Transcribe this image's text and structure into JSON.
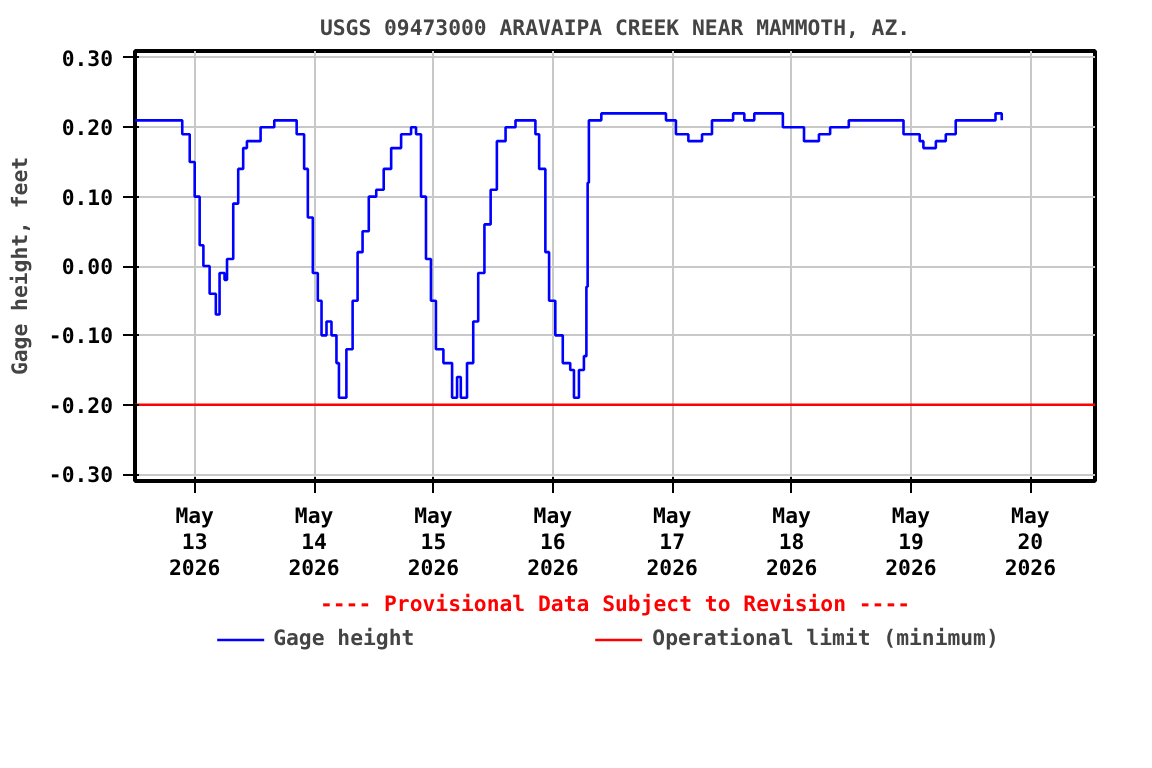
{
  "chart_data": {
    "type": "step",
    "title": "USGS 09473000 ARAVAIPA CREEK NEAR MAMMOTH, AZ.",
    "ylabel": "Gage height, feet",
    "annotations": [
      "---- Provisional Data Subject to Revision ----"
    ],
    "xlim": [
      "2026-05-12T12:00",
      "2026-05-20T13:00"
    ],
    "xticks": [
      {
        "value": "2026-05-13",
        "label": "May\n13\n2026"
      },
      {
        "value": "2026-05-14",
        "label": "May\n14\n2026"
      },
      {
        "value": "2026-05-15",
        "label": "May\n15\n2026"
      },
      {
        "value": "2026-05-16",
        "label": "May\n16\n2026"
      },
      {
        "value": "2026-05-17",
        "label": "May\n17\n2026"
      },
      {
        "value": "2026-05-18",
        "label": "May\n18\n2026"
      },
      {
        "value": "2026-05-19",
        "label": "May\n19\n2026"
      },
      {
        "value": "2026-05-20",
        "label": "May\n20\n2026"
      }
    ],
    "ylim": [
      -0.31,
      0.31
    ],
    "yticks": [
      {
        "value": -0.3,
        "label": "-0.30"
      },
      {
        "value": -0.2,
        "label": "-0.20"
      },
      {
        "value": -0.1,
        "label": "-0.10"
      },
      {
        "value": 0,
        "label": "0.00"
      },
      {
        "value": 0.1,
        "label": "0.10"
      },
      {
        "value": 0.2,
        "label": "0.20"
      },
      {
        "value": 0.3,
        "label": "0.30"
      }
    ],
    "grid": true,
    "legend": "bottom",
    "line_style": "solid",
    "series": [
      {
        "name": "Gage height",
        "color": "#0000ff",
        "x": [
          "2026-05-12T12:00",
          "2026-05-12T20:30",
          "2026-05-12T21:30",
          "2026-05-12T23:00",
          "2026-05-13T00:00",
          "2026-05-13T01:00",
          "2026-05-13T01:45",
          "2026-05-13T03:00",
          "2026-05-13T04:15",
          "2026-05-13T05:00",
          "2026-05-13T06:00",
          "2026-05-13T06:30",
          "2026-05-13T07:45",
          "2026-05-13T08:45",
          "2026-05-13T09:45",
          "2026-05-13T10:30",
          "2026-05-13T13:15",
          "2026-05-13T16:00",
          "2026-05-13T19:30",
          "2026-05-13T20:30",
          "2026-05-13T22:00",
          "2026-05-13T22:45",
          "2026-05-13T23:45",
          "2026-05-14T00:45",
          "2026-05-14T01:30",
          "2026-05-14T02:30",
          "2026-05-14T03:30",
          "2026-05-14T04:30",
          "2026-05-14T05:00",
          "2026-05-14T06:30",
          "2026-05-14T07:45",
          "2026-05-14T08:45",
          "2026-05-14T09:45",
          "2026-05-14T11:00",
          "2026-05-14T12:30",
          "2026-05-14T14:00",
          "2026-05-14T15:30",
          "2026-05-14T17:30",
          "2026-05-14T19:30",
          "2026-05-14T20:30",
          "2026-05-14T21:30",
          "2026-05-14T22:30",
          "2026-05-14T23:30",
          "2026-05-15T00:30",
          "2026-05-15T02:00",
          "2026-05-15T03:45",
          "2026-05-15T04:45",
          "2026-05-15T05:30",
          "2026-05-15T06:45",
          "2026-05-15T08:00",
          "2026-05-15T09:00",
          "2026-05-15T10:15",
          "2026-05-15T11:30",
          "2026-05-15T12:45",
          "2026-05-15T14:30",
          "2026-05-15T16:30",
          "2026-05-15T19:15",
          "2026-05-15T20:30",
          "2026-05-15T21:15",
          "2026-05-15T22:30",
          "2026-05-15T23:15",
          "2026-05-16T00:30",
          "2026-05-16T02:00",
          "2026-05-16T03:30",
          "2026-05-16T04:15",
          "2026-05-16T05:15",
          "2026-05-16T06:15",
          "2026-05-16T06:45",
          "2026-05-16T07:00",
          "2026-05-16T07:15",
          "2026-05-16T09:15",
          "2026-05-16T09:45",
          "2026-05-16T21:00",
          "2026-05-16T22:45",
          "2026-05-17T00:45",
          "2026-05-17T03:15",
          "2026-05-17T06:00",
          "2026-05-17T08:00",
          "2026-05-17T12:15",
          "2026-05-17T14:30",
          "2026-05-17T16:30",
          "2026-05-17T20:30",
          "2026-05-17T22:15",
          "2026-05-18T02:30",
          "2026-05-18T05:30",
          "2026-05-18T07:45",
          "2026-05-18T11:30",
          "2026-05-18T21:00",
          "2026-05-18T22:30",
          "2026-05-19T01:45",
          "2026-05-19T02:30",
          "2026-05-19T05:00",
          "2026-05-19T07:00",
          "2026-05-19T09:00",
          "2026-05-19T16:15",
          "2026-05-19T17:00",
          "2026-05-19T18:15"
        ],
        "values": [
          0.21,
          0.21,
          0.19,
          0.15,
          0.1,
          0.03,
          0.0,
          -0.04,
          -0.07,
          -0.01,
          -0.02,
          0.01,
          0.09,
          0.14,
          0.17,
          0.18,
          0.2,
          0.21,
          0.21,
          0.19,
          0.14,
          0.07,
          -0.01,
          -0.05,
          -0.1,
          -0.08,
          -0.1,
          -0.14,
          -0.19,
          -0.12,
          -0.05,
          0.02,
          0.05,
          0.1,
          0.11,
          0.14,
          0.17,
          0.19,
          0.2,
          0.19,
          0.1,
          0.01,
          -0.05,
          -0.12,
          -0.14,
          -0.19,
          -0.16,
          -0.19,
          -0.14,
          -0.08,
          -0.01,
          0.06,
          0.11,
          0.18,
          0.2,
          0.21,
          0.21,
          0.19,
          0.14,
          0.02,
          -0.05,
          -0.1,
          -0.14,
          -0.15,
          -0.19,
          -0.15,
          -0.13,
          -0.03,
          0.12,
          0.21,
          0.21,
          0.22,
          0.22,
          0.21,
          0.19,
          0.18,
          0.19,
          0.21,
          0.22,
          0.21,
          0.22,
          0.22,
          0.2,
          0.18,
          0.19,
          0.2,
          0.21,
          0.21,
          0.19,
          0.18,
          0.17,
          0.18,
          0.19,
          0.21,
          0.21,
          0.22,
          0.21
        ]
      },
      {
        "name": "Operational limit (minimum)",
        "color": "#ff0000",
        "type": "line",
        "x": [
          "2026-05-12T12:00",
          "2026-05-20T13:00"
        ],
        "values": [
          -0.2,
          -0.2
        ]
      }
    ]
  }
}
